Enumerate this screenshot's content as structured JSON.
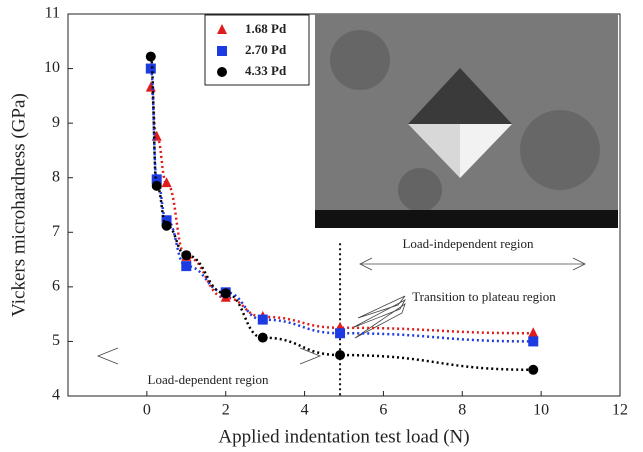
{
  "chart_data": {
    "type": "scatter",
    "x_label": "Applied indentation test load (N)",
    "y_label": "Vickers microhardness (GPa)",
    "xlim": [
      -2,
      12
    ],
    "xticks": [
      0,
      2,
      4,
      6,
      8,
      10,
      12
    ],
    "ylim": [
      4,
      11
    ],
    "yticks": [
      4,
      5,
      6,
      7,
      8,
      9,
      10,
      11
    ],
    "legend": "top-left",
    "divider_x": 4.9,
    "annotations": [
      "Load-independent region",
      "Transition to plateau region",
      "Load-dependent region"
    ],
    "series": [
      {
        "name": "1.68 Pd",
        "color": "#e01b1b",
        "marker": "triangle",
        "x": [
          0.1,
          0.25,
          0.5,
          1,
          2,
          2.94,
          4.9,
          9.8
        ],
        "values": [
          9.65,
          8.75,
          7.9,
          6.55,
          5.8,
          5.45,
          5.25,
          5.15
        ]
      },
      {
        "name": "2.70 Pd",
        "color": "#1c3be0",
        "marker": "square",
        "x": [
          0.1,
          0.25,
          0.5,
          1,
          2,
          2.94,
          4.9,
          9.8
        ],
        "values": [
          10.0,
          7.97,
          7.22,
          6.38,
          5.9,
          5.4,
          5.15,
          5.0
        ]
      },
      {
        "name": "4.33 Pd",
        "color": "#000000",
        "marker": "circle",
        "x": [
          0.1,
          0.25,
          0.5,
          1,
          2,
          2.94,
          4.9,
          9.8
        ],
        "values": [
          10.22,
          7.85,
          7.12,
          6.58,
          5.88,
          5.07,
          4.75,
          4.48
        ]
      }
    ]
  }
}
